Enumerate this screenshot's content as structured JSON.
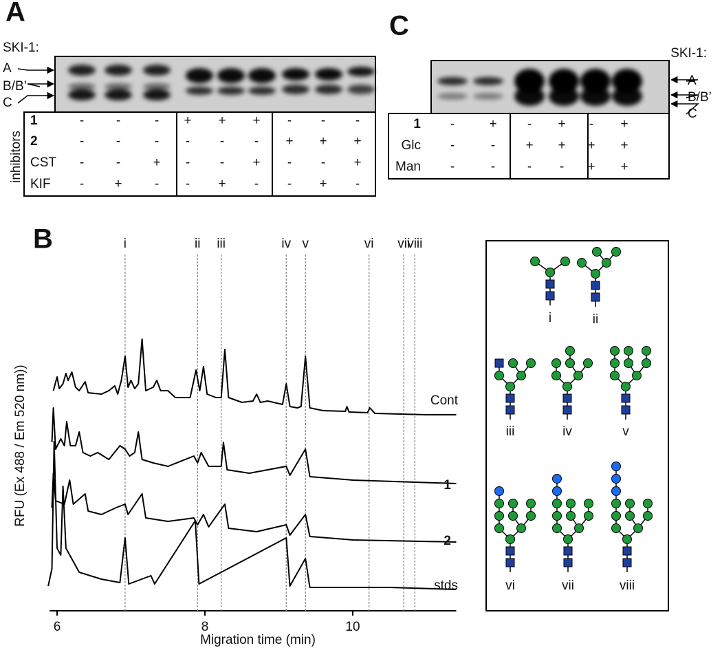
{
  "panel_a": {
    "label": "A",
    "title": "SKI-1:",
    "band_labels": [
      "A",
      "B/B’",
      "C"
    ],
    "group_label": "inhibitors",
    "rows": [
      {
        "label": "1",
        "values": [
          "-",
          "-",
          "-",
          "+",
          "+",
          "+",
          "-",
          "-",
          "-"
        ]
      },
      {
        "label": "2",
        "values": [
          "-",
          "-",
          "-",
          "-",
          "-",
          "-",
          "+",
          "+",
          "+"
        ]
      },
      {
        "label": "CST",
        "values": [
          "-",
          "-",
          "+",
          "-",
          "-",
          "+",
          "-",
          "-",
          "+"
        ]
      },
      {
        "label": "KIF",
        "values": [
          "-",
          "+",
          "-",
          "-",
          "+",
          "-",
          "-",
          "+",
          "-"
        ]
      }
    ]
  },
  "panel_c": {
    "label": "C",
    "title": "SKI-1:",
    "band_labels": [
      "A",
      "B/B’",
      "C"
    ],
    "rows": [
      {
        "label": "1",
        "values": [
          "-",
          "+",
          "-",
          "+",
          "-",
          "+"
        ]
      },
      {
        "label": "Glc",
        "values": [
          "-",
          "-",
          "+",
          "+",
          "+",
          "+"
        ]
      },
      {
        "label": "Man",
        "values": [
          "-",
          "-",
          "-",
          "-",
          "+",
          "+"
        ]
      }
    ]
  },
  "chart_data": {
    "type": "line",
    "panel_label": "B",
    "xlabel": "Migration time (min)",
    "ylabel": "RFU (Ex 488 / Em 520 nm))",
    "xlim": [
      5.9,
      11.4
    ],
    "xticks": [
      6,
      8,
      10
    ],
    "markers": [
      {
        "label": "i",
        "x": 6.92
      },
      {
        "label": "ii",
        "x": 7.9
      },
      {
        "label": "iii",
        "x": 8.22
      },
      {
        "label": "iv",
        "x": 9.1
      },
      {
        "label": "v",
        "x": 9.36
      },
      {
        "label": "vi",
        "x": 10.22
      },
      {
        "label": "vii",
        "x": 10.69
      },
      {
        "label": "viii",
        "x": 10.84
      }
    ],
    "series": [
      {
        "name": "Cont",
        "color": "#000000",
        "x": [
          5.95,
          6.0,
          6.03,
          6.08,
          6.12,
          6.15,
          6.2,
          6.25,
          6.3,
          6.38,
          6.42,
          6.6,
          6.7,
          6.78,
          6.82,
          6.87,
          6.92,
          6.96,
          7.0,
          7.05,
          7.1,
          7.15,
          7.2,
          7.3,
          7.35,
          7.4,
          7.5,
          7.6,
          7.8,
          7.88,
          7.93,
          7.98,
          8.03,
          8.15,
          8.22,
          8.27,
          8.32,
          8.5,
          8.65,
          8.7,
          8.75,
          8.85,
          9.05,
          9.1,
          9.15,
          9.25,
          9.3,
          9.36,
          9.42,
          9.6,
          9.9,
          9.92,
          9.95,
          10.2,
          10.23,
          10.3,
          11.0,
          11.4
        ],
        "values": [
          35,
          55,
          38,
          45,
          60,
          50,
          62,
          40,
          35,
          48,
          32,
          30,
          35,
          42,
          30,
          50,
          85,
          40,
          50,
          38,
          45,
          110,
          35,
          40,
          50,
          35,
          35,
          25,
          25,
          65,
          35,
          70,
          30,
          25,
          25,
          95,
          25,
          18,
          20,
          30,
          18,
          20,
          15,
          45,
          12,
          10,
          12,
          85,
          10,
          6,
          5,
          12,
          4,
          3,
          10,
          2,
          0,
          0
        ]
      },
      {
        "name": "1",
        "color": "#000000",
        "x": [
          5.93,
          5.95,
          5.98,
          6.05,
          6.1,
          6.13,
          6.18,
          6.25,
          6.3,
          6.35,
          6.45,
          6.55,
          6.7,
          6.85,
          6.92,
          6.98,
          7.05,
          7.1,
          7.15,
          7.3,
          7.5,
          7.85,
          7.9,
          7.95,
          8.05,
          8.22,
          8.25,
          8.3,
          8.6,
          9.1,
          9.15,
          9.36,
          9.42,
          10.0,
          11.4
        ],
        "values": [
          60,
          110,
          50,
          65,
          55,
          90,
          55,
          55,
          75,
          45,
          40,
          45,
          35,
          55,
          50,
          40,
          45,
          75,
          35,
          30,
          25,
          40,
          30,
          45,
          25,
          25,
          60,
          20,
          15,
          25,
          12,
          50,
          10,
          5,
          0
        ]
      },
      {
        "name": "2",
        "color": "#000000",
        "x": [
          5.93,
          5.95,
          5.98,
          6.1,
          6.17,
          6.22,
          6.38,
          6.42,
          6.6,
          6.8,
          6.92,
          6.96,
          7.15,
          7.2,
          7.5,
          7.85,
          7.9,
          7.98,
          8.05,
          8.27,
          8.32,
          8.7,
          9.1,
          9.15,
          9.36,
          9.42,
          10.0,
          11.4
        ],
        "values": [
          50,
          100,
          60,
          55,
          90,
          55,
          70,
          45,
          40,
          50,
          55,
          40,
          70,
          35,
          30,
          35,
          25,
          40,
          22,
          55,
          20,
          15,
          25,
          10,
          40,
          8,
          3,
          0
        ]
      },
      {
        "name": "stds",
        "color": "#000000",
        "x": [
          5.88,
          5.93,
          5.96,
          6.0,
          6.05,
          6.08,
          6.12,
          6.3,
          6.6,
          6.85,
          6.92,
          6.97,
          7.27,
          7.32,
          7.87,
          7.92,
          9.1,
          9.15,
          9.36,
          9.42,
          10.5,
          11.4
        ],
        "values": [
          5,
          30,
          215,
          60,
          50,
          150,
          60,
          25,
          15,
          10,
          75,
          8,
          20,
          8,
          100,
          8,
          75,
          5,
          45,
          3,
          3,
          0
        ]
      }
    ]
  },
  "glycan_legend": {
    "labels": [
      "i",
      "ii",
      "iii",
      "iv",
      "v",
      "vi",
      "vii",
      "viii"
    ]
  }
}
